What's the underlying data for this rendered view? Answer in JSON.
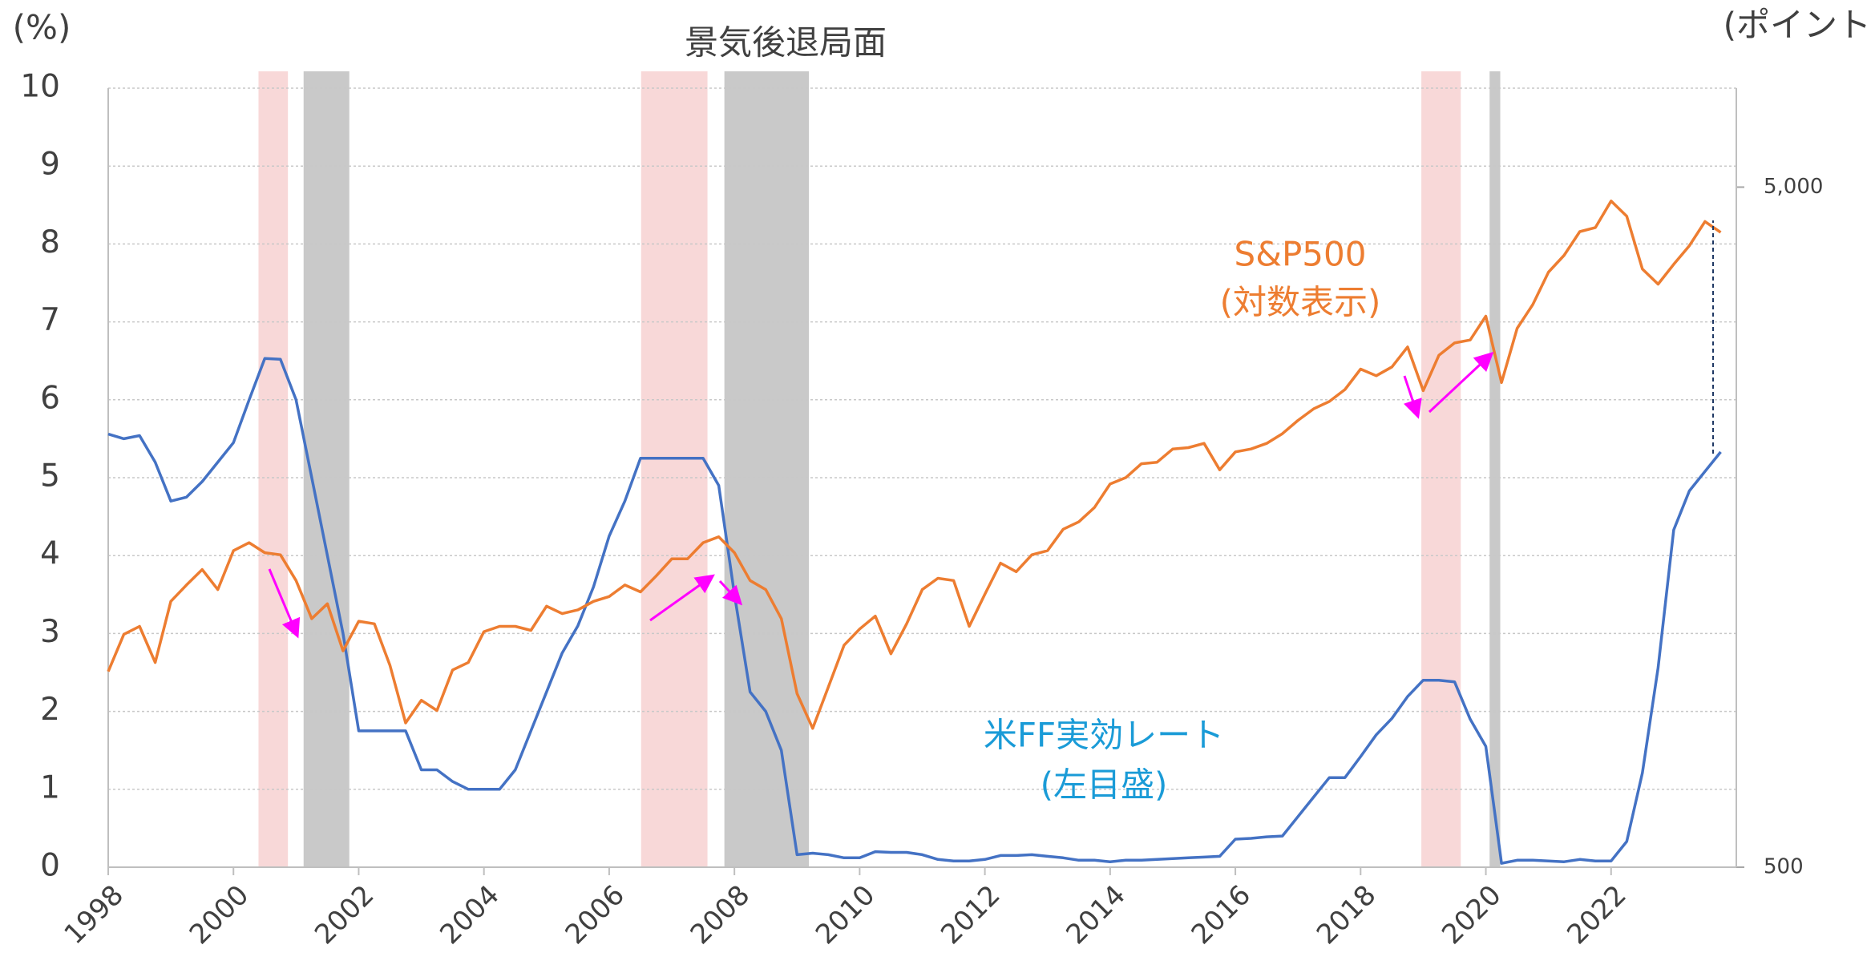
{
  "chart_data": {
    "type": "line",
    "left_unit": "(%)",
    "right_unit": "(ポイント)",
    "shading_label": "景気後退局面",
    "sp_label": "S&P500",
    "sp_note": "(対数表示)",
    "ff_label": "米FF実効レート",
    "ff_note": "(左目盛)",
    "xlim": [
      1998,
      2024
    ],
    "xticks": [
      1998,
      2000,
      2002,
      2004,
      2006,
      2008,
      2010,
      2012,
      2014,
      2016,
      2018,
      2020,
      2022
    ],
    "ylim": [
      0,
      10
    ],
    "yticks": [
      0,
      1,
      2,
      3,
      4,
      5,
      6,
      7,
      8,
      9,
      10
    ],
    "y2lim": [
      500,
      6990
    ],
    "y2scale": "log",
    "y2ticks": [
      500,
      {
        "value": 5000,
        "label": "5,000"
      }
    ],
    "grid": true,
    "shaded_periods": [
      {
        "color": "#f8d8d8",
        "ranges": [
          [
            2000.4,
            2000.87
          ],
          [
            2006.51,
            2007.57
          ],
          [
            2018.97,
            2019.6
          ]
        ]
      },
      {
        "color": "#c9c9c9",
        "ranges": [
          [
            2001.12,
            2001.85
          ],
          [
            2007.84,
            2009.19
          ],
          [
            2020.06,
            2020.23
          ]
        ]
      }
    ],
    "x": [
      1998,
      1998.25,
      1998.5,
      1998.75,
      1999,
      1999.25,
      1999.5,
      1999.75,
      2000,
      2000.25,
      2000.5,
      2000.75,
      2001,
      2001.25,
      2001.5,
      2001.75,
      2002,
      2002.25,
      2002.5,
      2002.75,
      2003,
      2003.25,
      2003.5,
      2003.75,
      2004,
      2004.25,
      2004.5,
      2004.75,
      2005,
      2005.25,
      2005.5,
      2005.75,
      2006,
      2006.25,
      2006.5,
      2006.75,
      2007,
      2007.25,
      2007.5,
      2007.75,
      2008,
      2008.25,
      2008.5,
      2008.75,
      2009,
      2009.25,
      2009.5,
      2009.75,
      2010,
      2010.25,
      2010.5,
      2010.75,
      2011,
      2011.25,
      2011.5,
      2011.75,
      2012,
      2012.25,
      2012.5,
      2012.75,
      2013,
      2013.25,
      2013.5,
      2013.75,
      2014,
      2014.25,
      2014.5,
      2014.75,
      2015,
      2015.25,
      2015.5,
      2015.75,
      2016,
      2016.25,
      2016.5,
      2016.75,
      2017,
      2017.25,
      2017.5,
      2017.75,
      2018,
      2018.25,
      2018.5,
      2018.75,
      2019,
      2019.25,
      2019.5,
      2019.75,
      2020,
      2020.25,
      2020.5,
      2020.75,
      2021,
      2021.25,
      2021.5,
      2021.75,
      2022,
      2022.25,
      2022.5,
      2022.75,
      2023,
      2023.25,
      2023.5,
      2023.75
    ],
    "series": [
      {
        "color": "#4472c4",
        "axis": "y",
        "values": [
          5.56,
          5.5,
          5.54,
          5.2,
          4.7,
          4.75,
          4.95,
          5.2,
          5.45,
          6.0,
          6.53,
          6.52,
          6.0,
          5.0,
          4.0,
          3.0,
          1.75,
          1.75,
          1.75,
          1.75,
          1.25,
          1.25,
          1.1,
          1.0,
          1.0,
          1.0,
          1.25,
          1.75,
          2.25,
          2.75,
          3.1,
          3.6,
          4.25,
          4.7,
          5.25,
          5.25,
          5.25,
          5.25,
          5.25,
          4.9,
          3.5,
          2.25,
          2.0,
          1.5,
          0.16,
          0.18,
          0.16,
          0.12,
          0.12,
          0.2,
          0.19,
          0.19,
          0.16,
          0.1,
          0.08,
          0.08,
          0.1,
          0.15,
          0.15,
          0.16,
          0.14,
          0.12,
          0.09,
          0.09,
          0.07,
          0.09,
          0.09,
          0.1,
          0.11,
          0.12,
          0.13,
          0.14,
          0.36,
          0.37,
          0.39,
          0.4,
          0.65,
          0.9,
          1.15,
          1.15,
          1.42,
          1.7,
          1.91,
          2.19,
          2.4,
          2.4,
          2.38,
          1.9,
          1.55,
          0.05,
          0.09,
          0.09,
          0.08,
          0.07,
          0.1,
          0.08,
          0.08,
          0.33,
          1.21,
          2.56,
          4.33,
          4.83,
          5.08,
          5.33
        ]
      },
      {
        "color": "#ed7d31",
        "axis": "y2",
        "values": [
          970,
          1100,
          1130,
          1000,
          1230,
          1300,
          1370,
          1280,
          1460,
          1500,
          1450,
          1440,
          1320,
          1160,
          1220,
          1040,
          1150,
          1140,
          990,
          815,
          880,
          850,
          975,
          1000,
          1110,
          1130,
          1130,
          1115,
          1210,
          1180,
          1195,
          1230,
          1250,
          1300,
          1270,
          1340,
          1420,
          1420,
          1500,
          1530,
          1450,
          1320,
          1280,
          1160,
          900,
          800,
          920,
          1060,
          1120,
          1170,
          1030,
          1140,
          1280,
          1330,
          1320,
          1130,
          1260,
          1400,
          1360,
          1440,
          1460,
          1570,
          1610,
          1690,
          1830,
          1870,
          1960,
          1970,
          2060,
          2070,
          2100,
          1920,
          2040,
          2060,
          2100,
          2170,
          2270,
          2360,
          2420,
          2520,
          2700,
          2640,
          2720,
          2910,
          2510,
          2830,
          2950,
          2980,
          3230,
          2580,
          3100,
          3360,
          3750,
          3970,
          4300,
          4360,
          4770,
          4530,
          3790,
          3600,
          3850,
          4100,
          4450,
          4290
        ]
      }
    ]
  }
}
